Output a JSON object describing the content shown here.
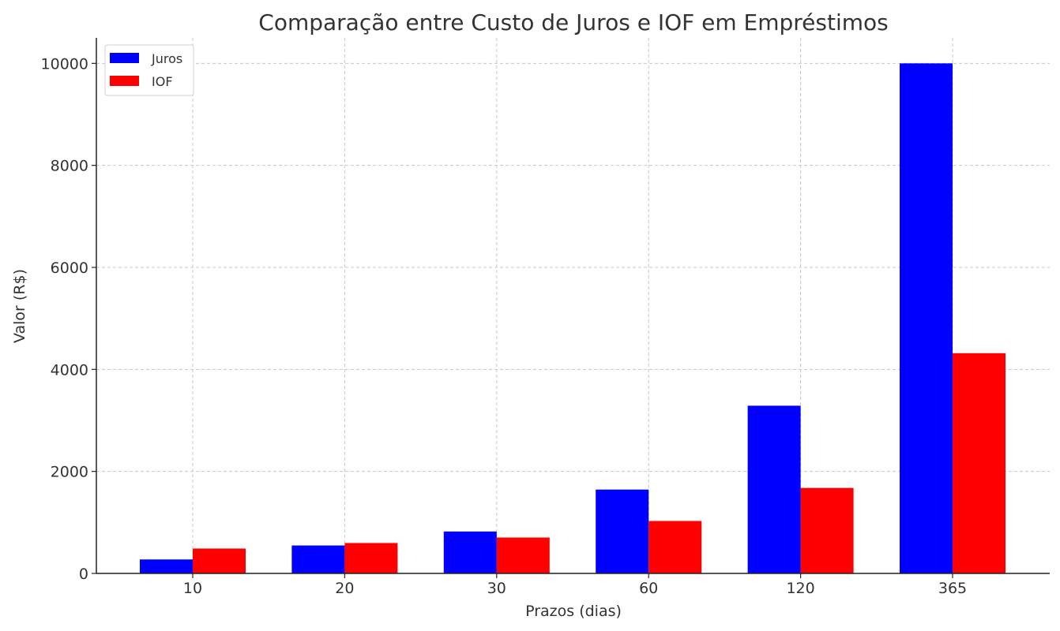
{
  "chart_data": {
    "type": "bar",
    "title": "Comparação entre Custo de Juros e IOF em Empréstimos",
    "xlabel": "Prazos (dias)",
    "ylabel": "Valor (R$)",
    "categories": [
      "10",
      "20",
      "30",
      "60",
      "120",
      "365"
    ],
    "series": [
      {
        "name": "Juros",
        "color": "#0000ff",
        "values": [
          274,
          548,
          822,
          1644,
          3288,
          10000
        ]
      },
      {
        "name": "IOF",
        "color": "#ff0000",
        "values": [
          488,
          596,
          704,
          1028,
          1676,
          4318
        ]
      }
    ],
    "ylim": [
      0,
      10500
    ],
    "yticks": [
      0,
      2000,
      4000,
      6000,
      8000,
      10000
    ],
    "grid": true,
    "legend": "top-left"
  }
}
